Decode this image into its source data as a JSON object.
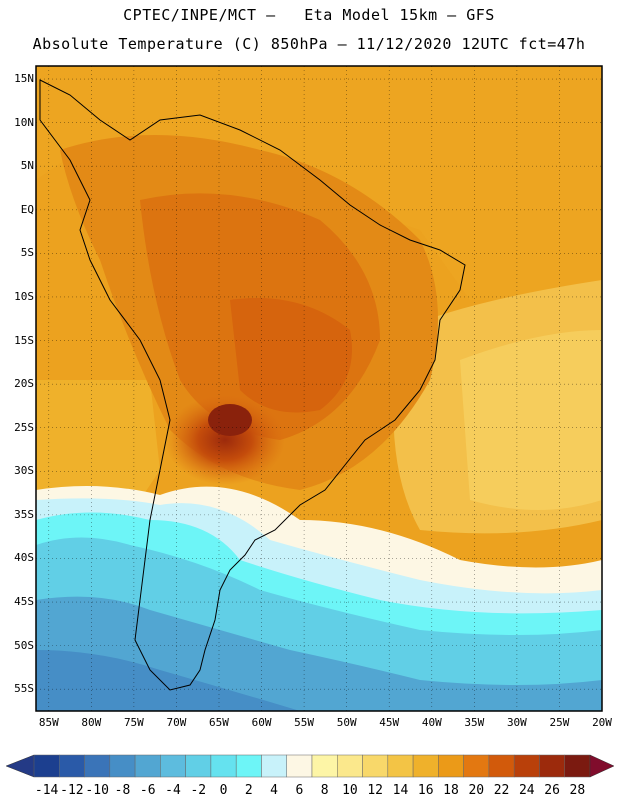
{
  "header": {
    "line1": "CPTEC/INPE/MCT –   Eta Model 15km – GFS",
    "line2": "Absolute Temperature (C) 850hPa – 11/12/2020 12UTC fct=47h"
  },
  "map": {
    "region": "South America",
    "lat_ticks": [
      "15N",
      "10N",
      "5N",
      "EQ",
      "5S",
      "10S",
      "15S",
      "20S",
      "25S",
      "30S",
      "35S",
      "40S",
      "45S",
      "50S",
      "55S"
    ],
    "lon_ticks": [
      "85W",
      "80W",
      "75W",
      "70W",
      "65W",
      "60W",
      "55W",
      "50W",
      "45W",
      "40W",
      "35W",
      "30W",
      "25W",
      "20W"
    ],
    "lat_range": [
      -57.5,
      16.5
    ],
    "lon_range": [
      -86.5,
      -20
    ]
  },
  "colorbar": {
    "labels": [
      "-14",
      "-12",
      "-10",
      "-8",
      "-6",
      "-4",
      "-2",
      "0",
      "2",
      "4",
      "6",
      "8",
      "10",
      "12",
      "14",
      "16",
      "18",
      "20",
      "22",
      "24",
      "26",
      "28"
    ],
    "colors": [
      "#1c3f8f",
      "#2a5aa8",
      "#3a74b8",
      "#468ec6",
      "#52a6d2",
      "#5dbcde",
      "#61cfe6",
      "#65e2ef",
      "#6df5f7",
      "#c8f2fa",
      "#fdf7e4",
      "#fdf5a6",
      "#fbe88c",
      "#f8d86a",
      "#f3c445",
      "#efb12b",
      "#eb9a18",
      "#e37811",
      "#d25a0b",
      "#b9400a",
      "#9c2a0c",
      "#7b1a10"
    ],
    "low_arrow": "#243a86",
    "high_arrow": "#800c2c"
  }
}
